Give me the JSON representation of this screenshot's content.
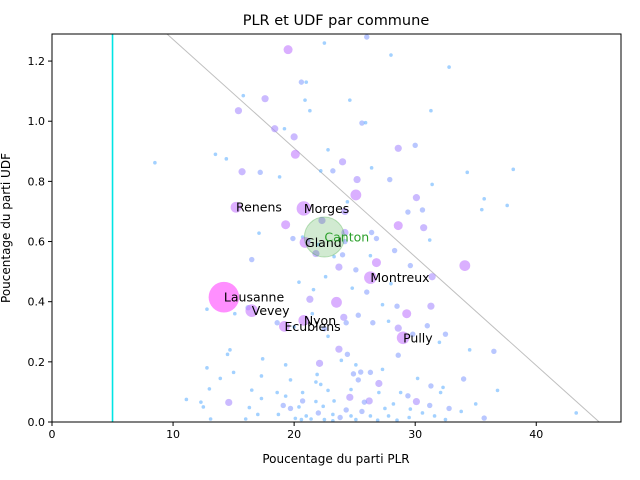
{
  "chart_data": {
    "type": "scatter",
    "title": "PLR et UDF par commune",
    "xlabel": "Poucentage du parti PLR",
    "ylabel": "Poucentage du parti UDF",
    "xlim": [
      0,
      47
    ],
    "ylim": [
      0,
      1.29
    ],
    "xticks": [
      "0",
      "10",
      "20",
      "30",
      "40"
    ],
    "yticks": [
      "0.0",
      "0.2",
      "0.4",
      "0.6",
      "0.8",
      "1.0",
      "1.2"
    ],
    "grid": false,
    "vertical_line": {
      "x": 5.0,
      "color": "#00e5e5"
    },
    "diagonal_line": {
      "from": [
        9.5,
        1.29
      ],
      "to": [
        45.2,
        0.0
      ],
      "color": "#bfbfbf"
    },
    "canton_point": {
      "label": "Canton",
      "x": 22.5,
      "y": 0.615,
      "size": 20,
      "color": "#2ca02c",
      "label_color": "#2ca02c"
    },
    "labeled_points": [
      {
        "label": "Renens",
        "x": 15.2,
        "y": 0.714,
        "size": 6
      },
      {
        "label": "Morges",
        "x": 20.8,
        "y": 0.71,
        "size": 8
      },
      {
        "label": "Gland",
        "x": 20.9,
        "y": 0.597,
        "size": 6
      },
      {
        "label": "Montreux",
        "x": 26.3,
        "y": 0.48,
        "size": 7
      },
      {
        "label": "Lausanne",
        "x": 14.2,
        "y": 0.415,
        "size": 17
      },
      {
        "label": "Vevey",
        "x": 16.5,
        "y": 0.37,
        "size": 7
      },
      {
        "label": "Nyon",
        "x": 20.8,
        "y": 0.338,
        "size": 6
      },
      {
        "label": "Ecublens",
        "x": 19.2,
        "y": 0.318,
        "size": 6
      },
      {
        "label": "Pully",
        "x": 29.0,
        "y": 0.28,
        "size": 7
      }
    ],
    "points": [
      [
        19.5,
        1.238,
        5
      ],
      [
        22.5,
        1.26,
        2
      ],
      [
        26.0,
        1.28,
        3
      ],
      [
        28.0,
        1.22,
        2
      ],
      [
        32.8,
        1.18,
        2
      ],
      [
        20.6,
        1.13,
        3
      ],
      [
        21.0,
        1.13,
        2
      ],
      [
        15.8,
        1.085,
        2
      ],
      [
        17.6,
        1.075,
        4
      ],
      [
        15.4,
        1.035,
        4
      ],
      [
        20.9,
        1.07,
        2
      ],
      [
        24.6,
        1.07,
        2
      ],
      [
        21.3,
        1.035,
        2
      ],
      [
        25.6,
        0.994,
        3
      ],
      [
        25.9,
        0.995,
        2
      ],
      [
        31.3,
        1.035,
        2
      ],
      [
        18.4,
        0.975,
        4
      ],
      [
        19.2,
        0.975,
        2
      ],
      [
        20.0,
        0.948,
        4
      ],
      [
        13.5,
        0.89,
        2
      ],
      [
        14.4,
        0.875,
        2
      ],
      [
        8.5,
        0.862,
        2
      ],
      [
        22.8,
        0.905,
        2
      ],
      [
        24.0,
        0.865,
        4
      ],
      [
        28.6,
        0.91,
        4
      ],
      [
        30.0,
        0.92,
        3
      ],
      [
        20.1,
        0.89,
        5
      ],
      [
        15.7,
        0.832,
        4
      ],
      [
        17.2,
        0.83,
        3
      ],
      [
        18.8,
        0.815,
        2
      ],
      [
        22.2,
        0.835,
        2
      ],
      [
        23.2,
        0.835,
        3
      ],
      [
        25.2,
        0.806,
        4
      ],
      [
        26.4,
        0.845,
        2
      ],
      [
        27.9,
        0.806,
        3
      ],
      [
        31.4,
        0.79,
        2
      ],
      [
        34.3,
        0.83,
        2
      ],
      [
        38.1,
        0.84,
        2
      ],
      [
        25.1,
        0.755,
        6
      ],
      [
        24.4,
        0.732,
        2
      ],
      [
        30.1,
        0.746,
        4
      ],
      [
        29.4,
        0.698,
        3
      ],
      [
        30.6,
        0.705,
        3
      ],
      [
        35.7,
        0.742,
        2
      ],
      [
        37.6,
        0.72,
        2
      ],
      [
        35.5,
        0.706,
        2
      ],
      [
        24.2,
        0.7,
        4
      ],
      [
        19.3,
        0.656,
        5
      ],
      [
        22.3,
        0.67,
        4
      ],
      [
        24.2,
        0.63,
        4
      ],
      [
        26.4,
        0.63,
        3
      ],
      [
        28.6,
        0.653,
        5
      ],
      [
        30.7,
        0.646,
        4
      ],
      [
        17.1,
        0.628,
        2
      ],
      [
        20.7,
        0.615,
        2
      ],
      [
        19.9,
        0.61,
        3
      ],
      [
        21.2,
        0.605,
        2
      ],
      [
        22.0,
        0.59,
        2
      ],
      [
        24.2,
        0.6,
        3
      ],
      [
        26.8,
        0.61,
        3
      ],
      [
        31.2,
        0.605,
        2
      ],
      [
        21.8,
        0.56,
        4
      ],
      [
        24.0,
        0.556,
        3
      ],
      [
        26.3,
        0.553,
        2
      ],
      [
        28.3,
        0.57,
        3
      ],
      [
        23.3,
        0.55,
        2
      ],
      [
        16.5,
        0.54,
        3
      ],
      [
        23.7,
        0.515,
        4
      ],
      [
        25.1,
        0.506,
        3
      ],
      [
        26.8,
        0.53,
        5
      ],
      [
        29.6,
        0.52,
        3
      ],
      [
        31.4,
        0.483,
        4
      ],
      [
        34.1,
        0.52,
        6
      ],
      [
        28.0,
        0.46,
        2
      ],
      [
        22.6,
        0.483,
        2
      ],
      [
        20.4,
        0.465,
        2
      ],
      [
        21.6,
        0.44,
        2
      ],
      [
        24.8,
        0.445,
        2
      ],
      [
        26.0,
        0.432,
        3
      ],
      [
        27.3,
        0.39,
        2
      ],
      [
        23.5,
        0.398,
        6
      ],
      [
        21.3,
        0.408,
        4
      ],
      [
        24.1,
        0.348,
        4
      ],
      [
        28.5,
        0.385,
        3
      ],
      [
        29.3,
        0.36,
        5
      ],
      [
        31.3,
        0.385,
        4
      ],
      [
        21.5,
        0.36,
        2
      ],
      [
        25.3,
        0.355,
        3
      ],
      [
        26.5,
        0.33,
        3
      ],
      [
        27.8,
        0.335,
        2
      ],
      [
        28.6,
        0.312,
        4
      ],
      [
        29.8,
        0.292,
        3
      ],
      [
        31.0,
        0.32,
        3
      ],
      [
        32.5,
        0.292,
        3
      ],
      [
        24.3,
        0.33,
        3
      ],
      [
        18.6,
        0.33,
        3
      ],
      [
        20.0,
        0.316,
        2
      ],
      [
        22.5,
        0.31,
        3
      ],
      [
        16.2,
        0.38,
        3
      ],
      [
        15.1,
        0.36,
        2
      ],
      [
        12.8,
        0.375,
        2
      ],
      [
        22.8,
        0.285,
        2
      ],
      [
        23.7,
        0.242,
        4
      ],
      [
        24.4,
        0.225,
        3
      ],
      [
        28.6,
        0.222,
        3
      ],
      [
        32.0,
        0.265,
        2
      ],
      [
        34.5,
        0.24,
        2
      ],
      [
        36.5,
        0.235,
        3
      ],
      [
        14.7,
        0.24,
        2
      ],
      [
        14.5,
        0.225,
        2
      ],
      [
        17.4,
        0.21,
        2
      ],
      [
        19.3,
        0.19,
        2
      ],
      [
        22.1,
        0.195,
        4
      ],
      [
        23.9,
        0.205,
        2
      ],
      [
        25.1,
        0.19,
        2
      ],
      [
        27.3,
        0.175,
        2
      ],
      [
        12.8,
        0.18,
        2
      ],
      [
        15.0,
        0.165,
        2
      ],
      [
        21.9,
        0.158,
        2
      ],
      [
        24.9,
        0.16,
        3
      ],
      [
        25.5,
        0.166,
        3
      ],
      [
        26.3,
        0.165,
        3
      ],
      [
        13.9,
        0.145,
        2
      ],
      [
        17.3,
        0.153,
        2
      ],
      [
        19.7,
        0.14,
        2
      ],
      [
        21.8,
        0.133,
        2
      ],
      [
        22.2,
        0.125,
        2
      ],
      [
        25.3,
        0.14,
        3
      ],
      [
        27.0,
        0.128,
        4
      ],
      [
        30.2,
        0.145,
        2
      ],
      [
        31.3,
        0.12,
        3
      ],
      [
        32.3,
        0.115,
        2
      ],
      [
        34.0,
        0.143,
        3
      ],
      [
        36.8,
        0.105,
        2
      ],
      [
        13.0,
        0.11,
        2
      ],
      [
        16.5,
        0.106,
        2
      ],
      [
        18.6,
        0.098,
        2
      ],
      [
        20.7,
        0.098,
        2
      ],
      [
        22.8,
        0.105,
        2
      ],
      [
        24.7,
        0.108,
        2
      ],
      [
        27.0,
        0.098,
        2
      ],
      [
        28.8,
        0.098,
        2
      ],
      [
        32.1,
        0.098,
        2
      ],
      [
        29.4,
        0.087,
        3
      ],
      [
        24.6,
        0.082,
        4
      ],
      [
        26.2,
        0.07,
        4
      ],
      [
        30.1,
        0.068,
        4
      ],
      [
        11.1,
        0.075,
        2
      ],
      [
        12.3,
        0.066,
        2
      ],
      [
        14.6,
        0.065,
        4
      ],
      [
        17.3,
        0.078,
        2
      ],
      [
        19.3,
        0.086,
        2
      ],
      [
        20.7,
        0.07,
        3
      ],
      [
        21.8,
        0.068,
        2
      ],
      [
        23.3,
        0.07,
        2
      ],
      [
        25.8,
        0.066,
        3
      ],
      [
        28.2,
        0.06,
        2
      ],
      [
        31.2,
        0.055,
        3
      ],
      [
        32.8,
        0.045,
        3
      ],
      [
        35.0,
        0.06,
        2
      ],
      [
        12.5,
        0.05,
        2
      ],
      [
        16.3,
        0.048,
        2
      ],
      [
        19.1,
        0.055,
        3
      ],
      [
        19.7,
        0.045,
        3
      ],
      [
        20.4,
        0.05,
        2
      ],
      [
        22.4,
        0.052,
        2
      ],
      [
        24.3,
        0.04,
        3
      ],
      [
        25.6,
        0.035,
        3
      ],
      [
        27.5,
        0.045,
        2
      ],
      [
        29.6,
        0.043,
        2
      ],
      [
        30.6,
        0.03,
        2
      ],
      [
        33.8,
        0.035,
        2
      ],
      [
        43.3,
        0.03,
        2
      ],
      [
        17.0,
        0.025,
        2
      ],
      [
        18.7,
        0.025,
        2
      ],
      [
        21.0,
        0.02,
        2
      ],
      [
        22.0,
        0.03,
        3
      ],
      [
        23.2,
        0.025,
        2
      ],
      [
        23.8,
        0.015,
        3
      ],
      [
        24.7,
        0.02,
        2
      ],
      [
        26.3,
        0.02,
        2
      ],
      [
        27.8,
        0.02,
        2
      ],
      [
        29.5,
        0.015,
        2
      ],
      [
        31.6,
        0.02,
        2
      ],
      [
        35.7,
        0.013,
        3
      ],
      [
        13.1,
        0.01,
        2
      ],
      [
        16.0,
        0.01,
        2
      ],
      [
        20.1,
        0.012,
        2
      ],
      [
        20.6,
        0.008,
        2
      ],
      [
        21.4,
        0.01,
        2
      ],
      [
        22.5,
        0.008,
        2
      ],
      [
        23.2,
        0.004,
        2
      ],
      [
        25.1,
        0.008,
        2
      ],
      [
        26.9,
        0.006,
        2
      ],
      [
        28.5,
        0.006,
        2
      ],
      [
        32.5,
        0.008,
        2
      ]
    ],
    "point_colors": [
      "#66b3ff",
      "#8aa2ff",
      "#a98cff",
      "#c27aff",
      "#d86cff"
    ],
    "label_color": "#000000"
  }
}
